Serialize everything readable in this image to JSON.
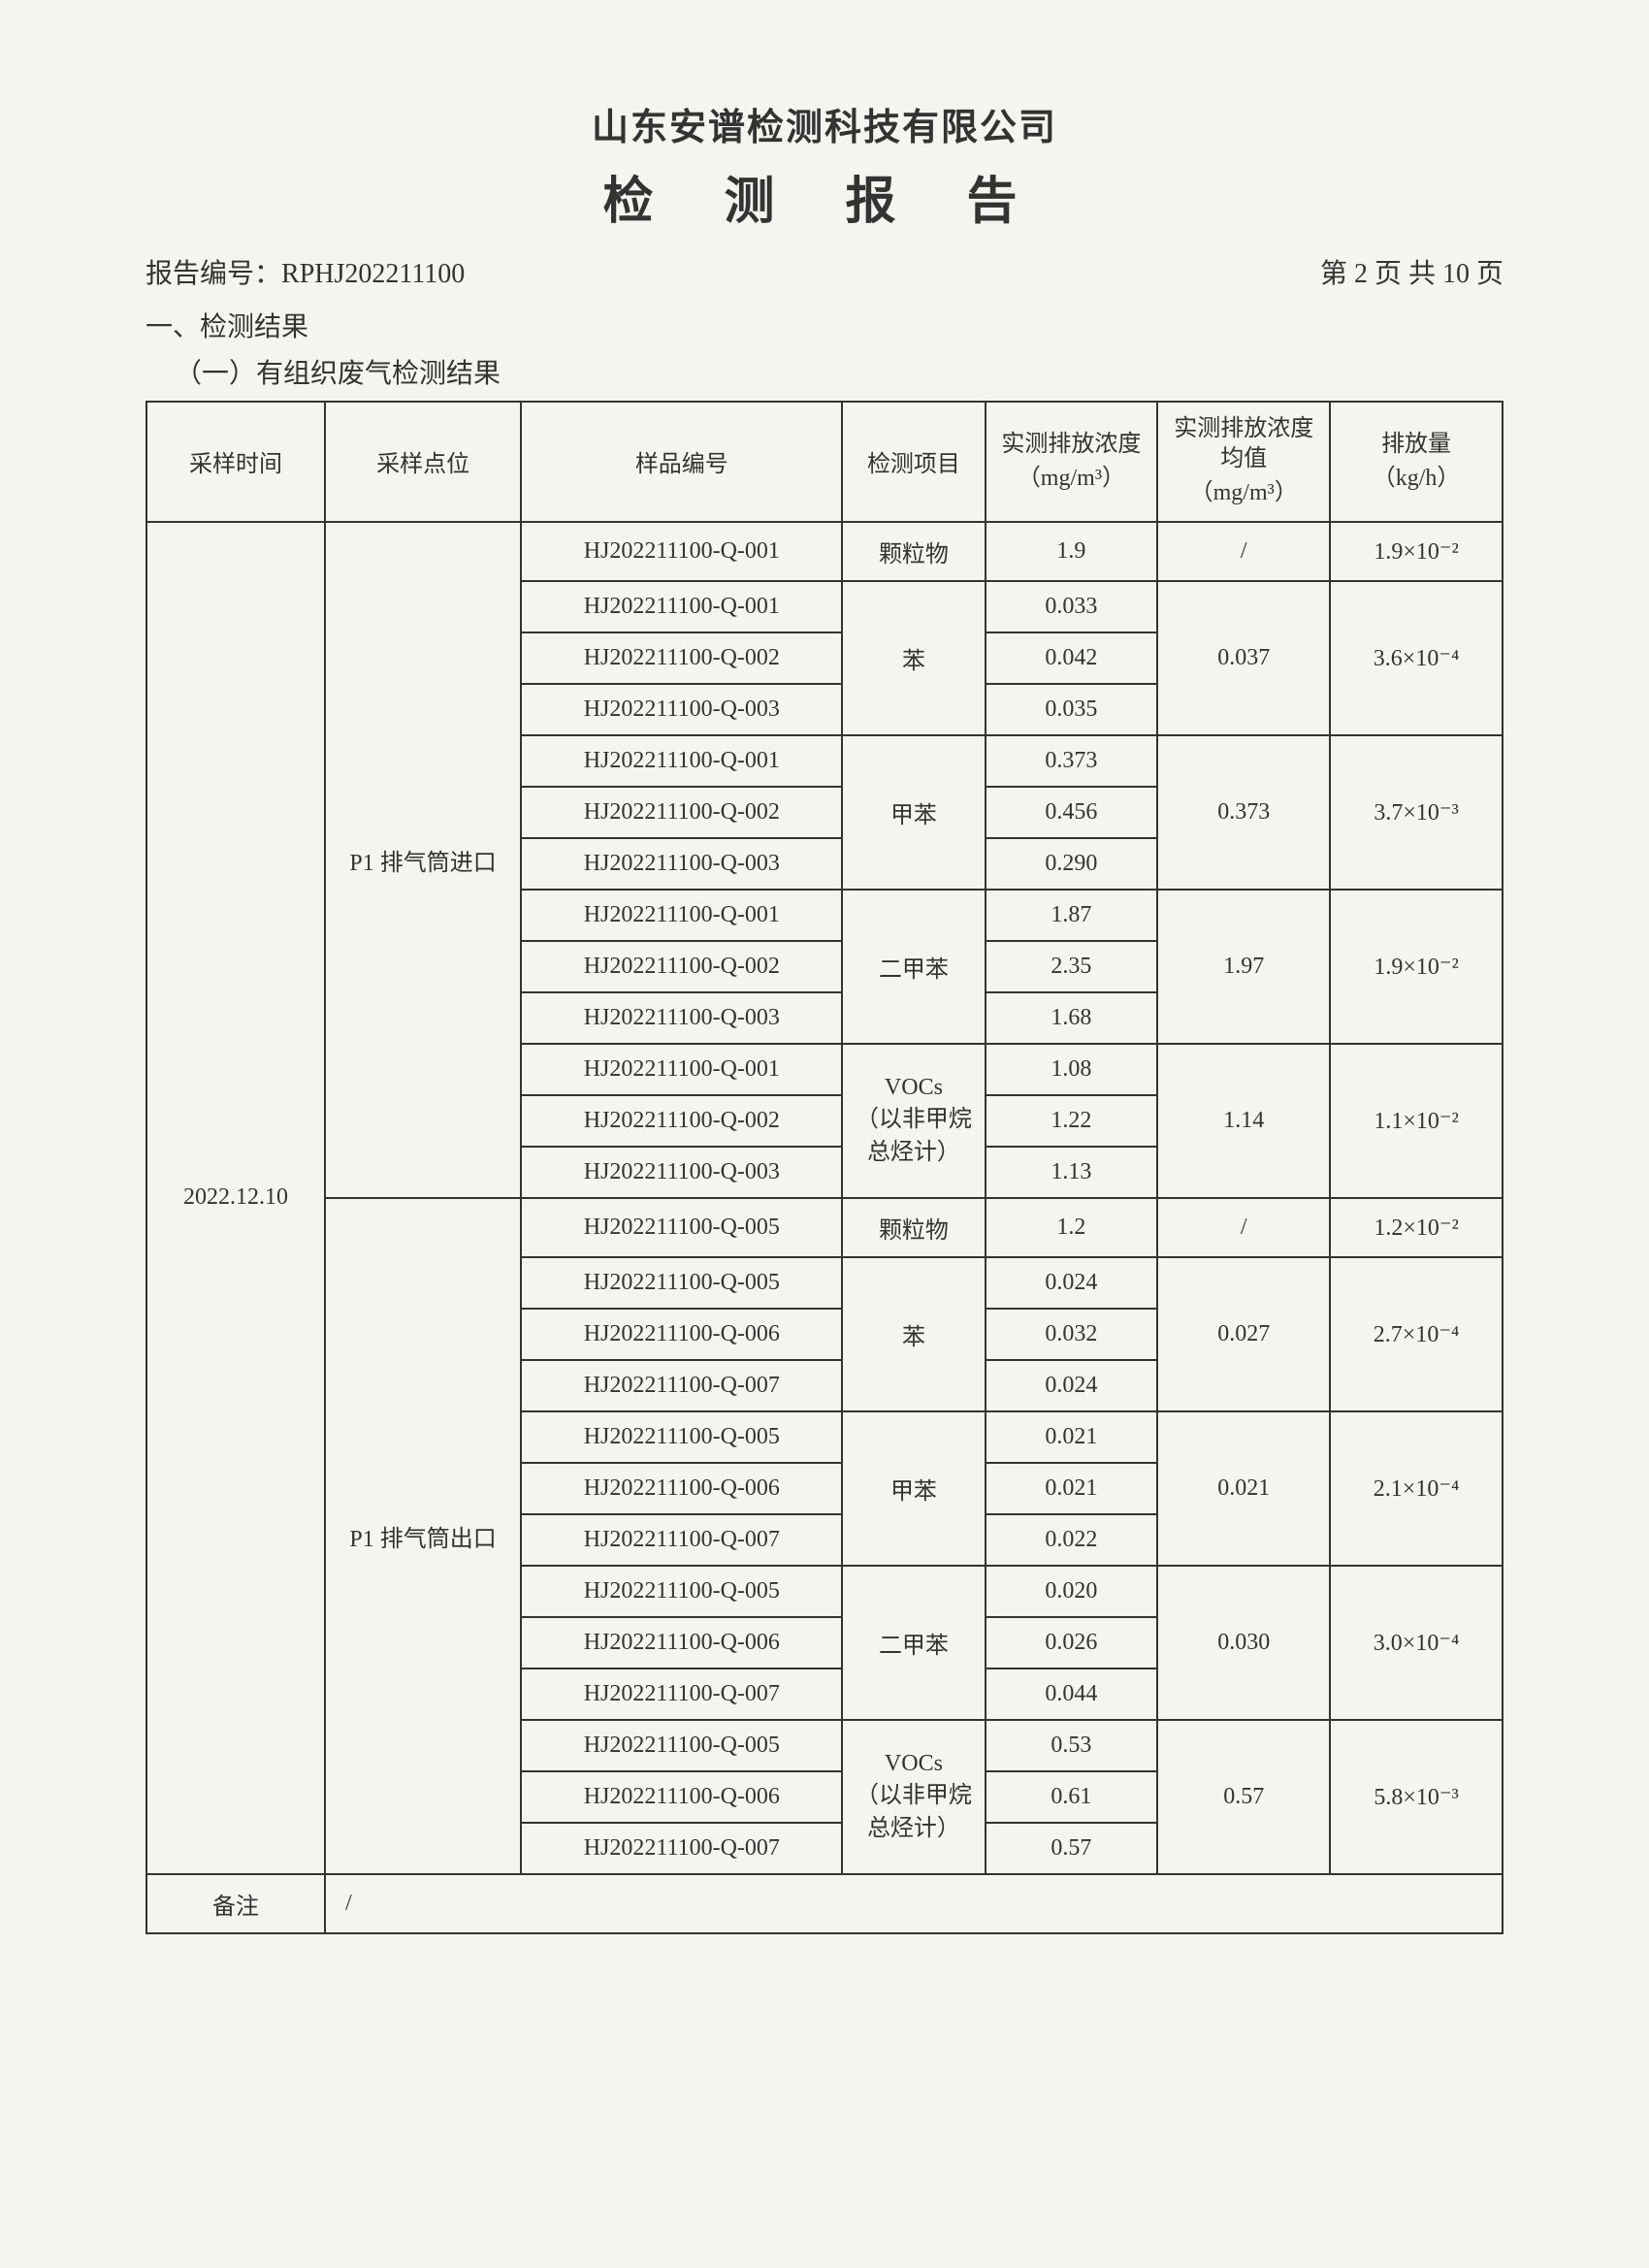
{
  "header": {
    "company_name": "山东安谱检测科技有限公司",
    "report_title": "检 测 报 告",
    "report_no_label": "报告编号：",
    "report_no": "RPHJ202211100",
    "page_info": "第 2 页 共 10 页"
  },
  "section": {
    "title": "一、检测结果",
    "subtitle": "（一）有组织废气检测结果"
  },
  "table": {
    "headers": {
      "sample_time": "采样时间",
      "sample_point": "采样点位",
      "sample_no": "样品编号",
      "test_item": "检测项目",
      "measured_conc": "实测排放浓度",
      "measured_conc_unit": "（mg/m³）",
      "avg_conc": "实测排放浓度均值",
      "avg_conc_unit": "（mg/m³）",
      "emission_rate": "排放量",
      "emission_rate_unit": "（kg/h）"
    },
    "sample_time": "2022.12.10",
    "point_in": "P1 排气筒进口",
    "point_out": "P1 排气筒出口",
    "items": {
      "particulate": "颗粒物",
      "benzene": "苯",
      "toluene": "甲苯",
      "xylene": "二甲苯",
      "vocs_line1": "VOCs",
      "vocs_line2": "（以非甲烷总烃计）"
    },
    "in": {
      "particulate": {
        "s1": "HJ202211100-Q-001",
        "v1": "1.9",
        "avg": "/",
        "rate": "1.9×10⁻²"
      },
      "benzene": {
        "s1": "HJ202211100-Q-001",
        "s2": "HJ202211100-Q-002",
        "s3": "HJ202211100-Q-003",
        "v1": "0.033",
        "v2": "0.042",
        "v3": "0.035",
        "avg": "0.037",
        "rate": "3.6×10⁻⁴"
      },
      "toluene": {
        "s1": "HJ202211100-Q-001",
        "s2": "HJ202211100-Q-002",
        "s3": "HJ202211100-Q-003",
        "v1": "0.373",
        "v2": "0.456",
        "v3": "0.290",
        "avg": "0.373",
        "rate": "3.7×10⁻³"
      },
      "xylene": {
        "s1": "HJ202211100-Q-001",
        "s2": "HJ202211100-Q-002",
        "s3": "HJ202211100-Q-003",
        "v1": "1.87",
        "v2": "2.35",
        "v3": "1.68",
        "avg": "1.97",
        "rate": "1.9×10⁻²"
      },
      "vocs": {
        "s1": "HJ202211100-Q-001",
        "s2": "HJ202211100-Q-002",
        "s3": "HJ202211100-Q-003",
        "v1": "1.08",
        "v2": "1.22",
        "v3": "1.13",
        "avg": "1.14",
        "rate": "1.1×10⁻²"
      }
    },
    "out": {
      "particulate": {
        "s1": "HJ202211100-Q-005",
        "v1": "1.2",
        "avg": "/",
        "rate": "1.2×10⁻²"
      },
      "benzene": {
        "s1": "HJ202211100-Q-005",
        "s2": "HJ202211100-Q-006",
        "s3": "HJ202211100-Q-007",
        "v1": "0.024",
        "v2": "0.032",
        "v3": "0.024",
        "avg": "0.027",
        "rate": "2.7×10⁻⁴"
      },
      "toluene": {
        "s1": "HJ202211100-Q-005",
        "s2": "HJ202211100-Q-006",
        "s3": "HJ202211100-Q-007",
        "v1": "0.021",
        "v2": "0.021",
        "v3": "0.022",
        "avg": "0.021",
        "rate": "2.1×10⁻⁴"
      },
      "xylene": {
        "s1": "HJ202211100-Q-005",
        "s2": "HJ202211100-Q-006",
        "s3": "HJ202211100-Q-007",
        "v1": "0.020",
        "v2": "0.026",
        "v3": "0.044",
        "avg": "0.030",
        "rate": "3.0×10⁻⁴"
      },
      "vocs": {
        "s1": "HJ202211100-Q-005",
        "s2": "HJ202211100-Q-006",
        "s3": "HJ202211100-Q-007",
        "v1": "0.53",
        "v2": "0.61",
        "v3": "0.57",
        "avg": "0.57",
        "rate": "5.8×10⁻³"
      }
    },
    "remark_label": "备注",
    "remark_content": "/"
  }
}
